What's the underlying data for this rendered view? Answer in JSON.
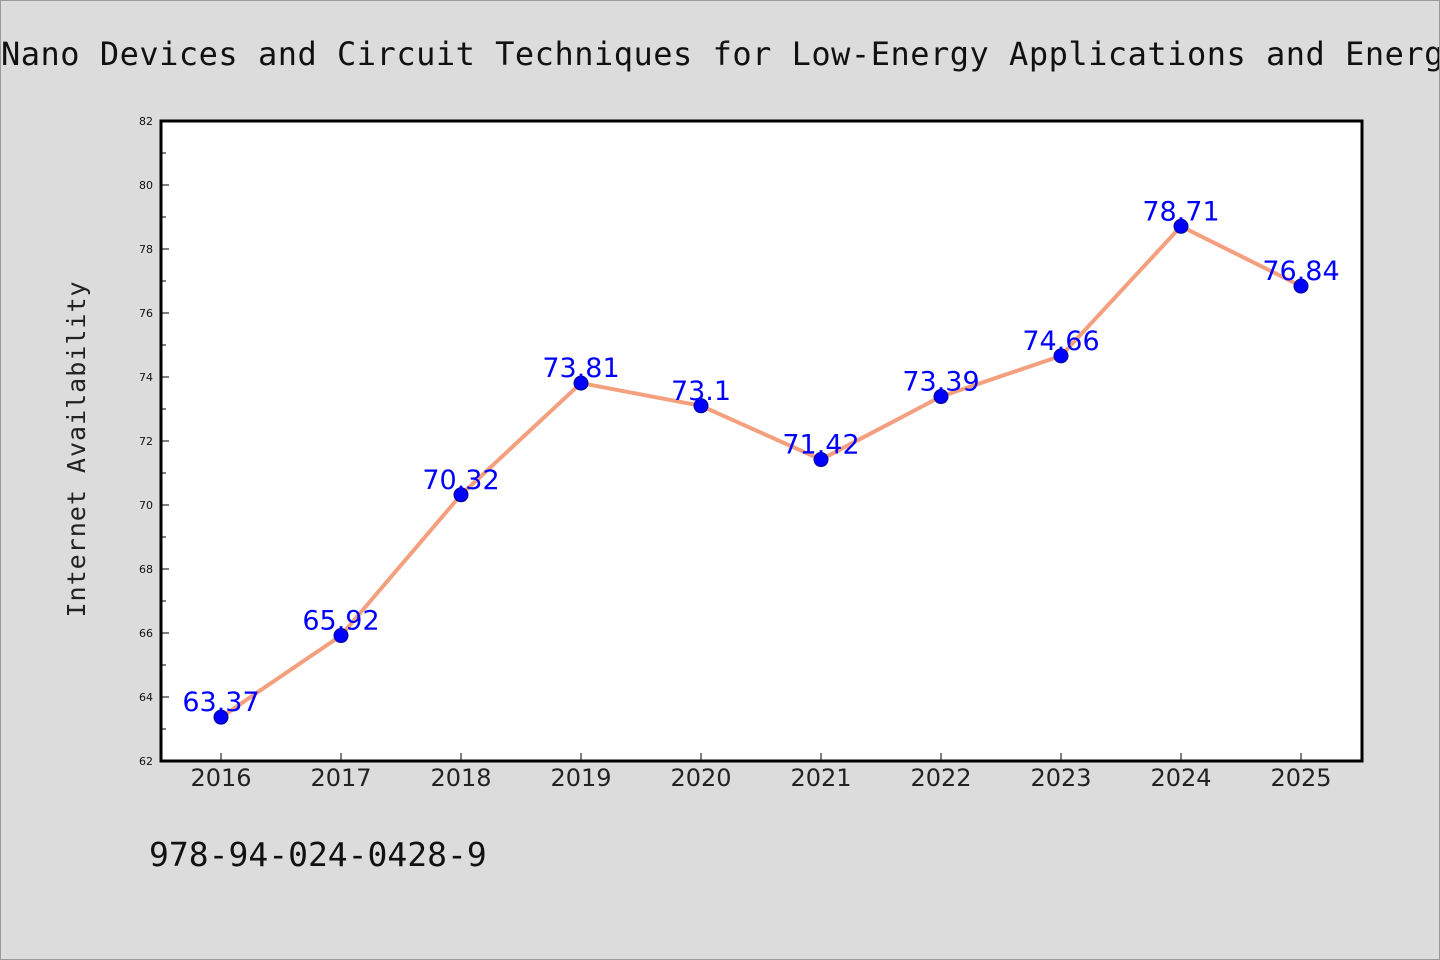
{
  "chart_data": {
    "type": "line",
    "title": "Nano Devices and Circuit Techniques for Low-Energy Applications and Energy Harve",
    "xlabel": "",
    "ylabel": "Internet Availability",
    "categories": [
      "2016",
      "2017",
      "2018",
      "2019",
      "2020",
      "2021",
      "2022",
      "2023",
      "2024",
      "2025"
    ],
    "series": [
      {
        "values": [
          63.37,
          65.92,
          70.32,
          73.81,
          73.1,
          71.42,
          73.39,
          74.66,
          78.71,
          76.84
        ],
        "data_labels": [
          "63.37",
          "65.92",
          "70.32",
          "73.81",
          "73.1",
          "71.42",
          "73.39",
          "74.66",
          "78.71",
          "76.84"
        ],
        "line_color": "#f4a07f",
        "marker_color": "#0000ff",
        "label_color": "#0000ff"
      }
    ],
    "ylim": [
      62,
      82
    ],
    "y_ticks": [
      "62",
      "64",
      "66",
      "68",
      "70",
      "72",
      "74",
      "76",
      "78",
      "80",
      "82"
    ],
    "grid": false,
    "legend": "none"
  },
  "footer": {
    "isbn": "978-94-024-0428-9"
  },
  "colors": {
    "background": "#dcdcdc",
    "plot_background": "#ffffff"
  }
}
